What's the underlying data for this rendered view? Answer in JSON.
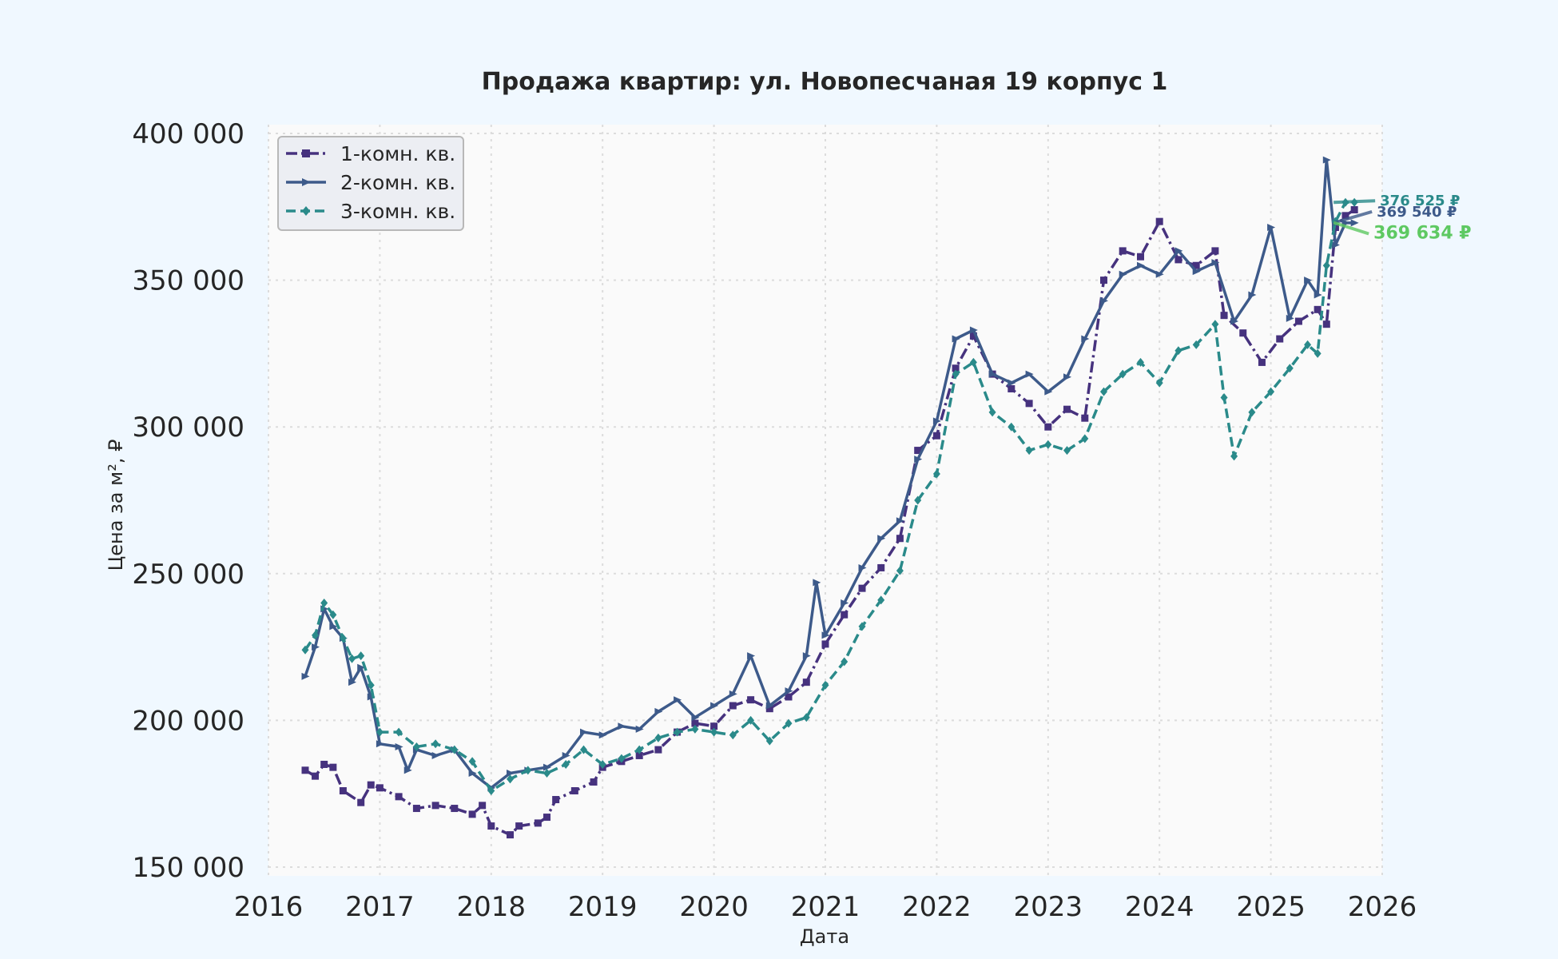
{
  "chart_data": {
    "type": "line",
    "title": "Продажа квартир: ул. Новопесчаная 19 корпус 1",
    "xlabel": "Дата",
    "ylabel": "Цена за м², ₽",
    "xlim": [
      2016.0,
      2026.0
    ],
    "ylim": [
      147000,
      403000
    ],
    "x_ticks": [
      2016,
      2017,
      2018,
      2019,
      2020,
      2021,
      2022,
      2023,
      2024,
      2025,
      2026
    ],
    "x_tick_labels": [
      "2016",
      "2017",
      "2018",
      "2019",
      "2020",
      "2021",
      "2022",
      "2023",
      "2024",
      "2025",
      "2026"
    ],
    "y_ticks": [
      150000,
      200000,
      250000,
      300000,
      350000,
      400000
    ],
    "y_tick_labels": [
      "150 000",
      "200 000",
      "250 000",
      "300 000",
      "350 000",
      "400 000"
    ],
    "grid": true,
    "legend_position": "top-left",
    "series": [
      {
        "name": "1-комн. кв.",
        "color": "#46327e",
        "line_style": "dashdot",
        "marker": "square",
        "points": [
          [
            2016.33,
            183000
          ],
          [
            2016.42,
            181000
          ],
          [
            2016.5,
            185000
          ],
          [
            2016.58,
            184000
          ],
          [
            2016.67,
            176000
          ],
          [
            2016.83,
            172000
          ],
          [
            2016.92,
            178000
          ],
          [
            2017.0,
            177000
          ],
          [
            2017.17,
            174000
          ],
          [
            2017.33,
            170000
          ],
          [
            2017.5,
            171000
          ],
          [
            2017.67,
            170000
          ],
          [
            2017.83,
            168000
          ],
          [
            2017.92,
            171000
          ],
          [
            2018.0,
            164000
          ],
          [
            2018.17,
            161000
          ],
          [
            2018.25,
            164000
          ],
          [
            2018.42,
            165000
          ],
          [
            2018.5,
            167000
          ],
          [
            2018.58,
            173000
          ],
          [
            2018.75,
            176000
          ],
          [
            2018.92,
            179000
          ],
          [
            2019.0,
            184000
          ],
          [
            2019.17,
            186000
          ],
          [
            2019.33,
            188000
          ],
          [
            2019.5,
            190000
          ],
          [
            2019.67,
            196000
          ],
          [
            2019.83,
            199000
          ],
          [
            2020.0,
            198000
          ],
          [
            2020.17,
            205000
          ],
          [
            2020.33,
            207000
          ],
          [
            2020.5,
            204000
          ],
          [
            2020.67,
            208000
          ],
          [
            2020.83,
            213000
          ],
          [
            2021.0,
            226000
          ],
          [
            2021.17,
            236000
          ],
          [
            2021.33,
            245000
          ],
          [
            2021.5,
            252000
          ],
          [
            2021.67,
            262000
          ],
          [
            2021.83,
            292000
          ],
          [
            2022.0,
            297000
          ],
          [
            2022.17,
            320000
          ],
          [
            2022.33,
            331000
          ],
          [
            2022.5,
            318000
          ],
          [
            2022.67,
            313000
          ],
          [
            2022.83,
            308000
          ],
          [
            2023.0,
            300000
          ],
          [
            2023.17,
            306000
          ],
          [
            2023.33,
            303000
          ],
          [
            2023.5,
            350000
          ],
          [
            2023.67,
            360000
          ],
          [
            2023.83,
            358000
          ],
          [
            2024.0,
            370000
          ],
          [
            2024.17,
            357000
          ],
          [
            2024.33,
            355000
          ],
          [
            2024.5,
            360000
          ],
          [
            2024.58,
            338000
          ],
          [
            2024.75,
            332000
          ],
          [
            2024.92,
            322000
          ],
          [
            2025.08,
            330000
          ],
          [
            2025.25,
            336000
          ],
          [
            2025.42,
            340000
          ],
          [
            2025.5,
            335000
          ],
          [
            2025.58,
            368000
          ],
          [
            2025.67,
            372000
          ],
          [
            2025.75,
            374000
          ]
        ]
      },
      {
        "name": "2-комн. кв.",
        "color": "#3d5a8a",
        "line_style": "solid",
        "marker": "triangle",
        "points": [
          [
            2016.33,
            215000
          ],
          [
            2016.42,
            225000
          ],
          [
            2016.5,
            238000
          ],
          [
            2016.58,
            232000
          ],
          [
            2016.67,
            228000
          ],
          [
            2016.75,
            213000
          ],
          [
            2016.83,
            218000
          ],
          [
            2016.92,
            208000
          ],
          [
            2017.0,
            192000
          ],
          [
            2017.17,
            191000
          ],
          [
            2017.25,
            183000
          ],
          [
            2017.33,
            190000
          ],
          [
            2017.5,
            188000
          ],
          [
            2017.67,
            190000
          ],
          [
            2017.83,
            182000
          ],
          [
            2018.0,
            177000
          ],
          [
            2018.17,
            182000
          ],
          [
            2018.33,
            183000
          ],
          [
            2018.5,
            184000
          ],
          [
            2018.67,
            188000
          ],
          [
            2018.83,
            196000
          ],
          [
            2019.0,
            195000
          ],
          [
            2019.17,
            198000
          ],
          [
            2019.33,
            197000
          ],
          [
            2019.5,
            203000
          ],
          [
            2019.67,
            207000
          ],
          [
            2019.83,
            201000
          ],
          [
            2020.0,
            205000
          ],
          [
            2020.17,
            209000
          ],
          [
            2020.33,
            222000
          ],
          [
            2020.5,
            205000
          ],
          [
            2020.67,
            210000
          ],
          [
            2020.83,
            222000
          ],
          [
            2020.92,
            247000
          ],
          [
            2021.0,
            229000
          ],
          [
            2021.17,
            240000
          ],
          [
            2021.33,
            252000
          ],
          [
            2021.5,
            262000
          ],
          [
            2021.67,
            268000
          ],
          [
            2021.83,
            289000
          ],
          [
            2022.0,
            302000
          ],
          [
            2022.17,
            330000
          ],
          [
            2022.33,
            333000
          ],
          [
            2022.5,
            318000
          ],
          [
            2022.67,
            315000
          ],
          [
            2022.83,
            318000
          ],
          [
            2023.0,
            312000
          ],
          [
            2023.17,
            317000
          ],
          [
            2023.33,
            330000
          ],
          [
            2023.5,
            343000
          ],
          [
            2023.67,
            352000
          ],
          [
            2023.83,
            355000
          ],
          [
            2024.0,
            352000
          ],
          [
            2024.17,
            360000
          ],
          [
            2024.33,
            353000
          ],
          [
            2024.5,
            356000
          ],
          [
            2024.67,
            336000
          ],
          [
            2024.83,
            345000
          ],
          [
            2025.0,
            368000
          ],
          [
            2025.17,
            337000
          ],
          [
            2025.33,
            350000
          ],
          [
            2025.42,
            345000
          ],
          [
            2025.5,
            391000
          ],
          [
            2025.58,
            362000
          ],
          [
            2025.67,
            369540
          ],
          [
            2025.75,
            369540
          ]
        ]
      },
      {
        "name": "3-комн. кв.",
        "color": "#2a8a8a",
        "line_style": "dashed",
        "marker": "diamond",
        "points": [
          [
            2016.33,
            224000
          ],
          [
            2016.42,
            229000
          ],
          [
            2016.5,
            240000
          ],
          [
            2016.58,
            236000
          ],
          [
            2016.67,
            228000
          ],
          [
            2016.75,
            221000
          ],
          [
            2016.83,
            222000
          ],
          [
            2016.92,
            212000
          ],
          [
            2017.0,
            196000
          ],
          [
            2017.17,
            196000
          ],
          [
            2017.33,
            191000
          ],
          [
            2017.5,
            192000
          ],
          [
            2017.67,
            190000
          ],
          [
            2017.83,
            186000
          ],
          [
            2018.0,
            176000
          ],
          [
            2018.17,
            180000
          ],
          [
            2018.33,
            183000
          ],
          [
            2018.5,
            182000
          ],
          [
            2018.67,
            185000
          ],
          [
            2018.83,
            190000
          ],
          [
            2019.0,
            185000
          ],
          [
            2019.17,
            187000
          ],
          [
            2019.33,
            190000
          ],
          [
            2019.5,
            194000
          ],
          [
            2019.67,
            196000
          ],
          [
            2019.83,
            197000
          ],
          [
            2020.0,
            196000
          ],
          [
            2020.17,
            195000
          ],
          [
            2020.33,
            200000
          ],
          [
            2020.5,
            193000
          ],
          [
            2020.67,
            199000
          ],
          [
            2020.83,
            201000
          ],
          [
            2021.0,
            212000
          ],
          [
            2021.17,
            220000
          ],
          [
            2021.33,
            232000
          ],
          [
            2021.5,
            241000
          ],
          [
            2021.67,
            251000
          ],
          [
            2021.83,
            275000
          ],
          [
            2022.0,
            284000
          ],
          [
            2022.17,
            318000
          ],
          [
            2022.33,
            322000
          ],
          [
            2022.5,
            305000
          ],
          [
            2022.67,
            300000
          ],
          [
            2022.83,
            292000
          ],
          [
            2023.0,
            294000
          ],
          [
            2023.17,
            292000
          ],
          [
            2023.33,
            296000
          ],
          [
            2023.5,
            312000
          ],
          [
            2023.67,
            318000
          ],
          [
            2023.83,
            322000
          ],
          [
            2024.0,
            315000
          ],
          [
            2024.17,
            326000
          ],
          [
            2024.33,
            328000
          ],
          [
            2024.5,
            335000
          ],
          [
            2024.58,
            310000
          ],
          [
            2024.67,
            290000
          ],
          [
            2024.83,
            305000
          ],
          [
            2025.0,
            312000
          ],
          [
            2025.17,
            320000
          ],
          [
            2025.33,
            328000
          ],
          [
            2025.42,
            325000
          ],
          [
            2025.5,
            355000
          ],
          [
            2025.58,
            370000
          ],
          [
            2025.67,
            376525
          ],
          [
            2025.75,
            376525
          ]
        ]
      }
    ],
    "annotations": [
      {
        "text": "369 540 ₽",
        "x": 2025.75,
        "y": 369540,
        "color": "#3d5a8a"
      },
      {
        "text": "376 525 ₽",
        "x": 2025.75,
        "y": 376525,
        "color": "#2a8a8a"
      },
      {
        "text": "369 634 ₽",
        "x": 2025.75,
        "y": 369634,
        "color": "#5ec962"
      }
    ]
  }
}
